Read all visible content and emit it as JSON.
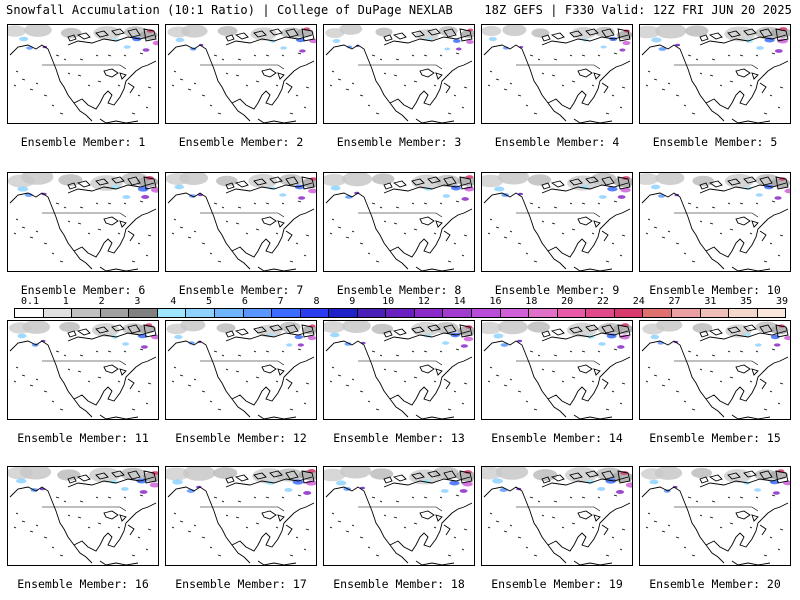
{
  "header": {
    "left": "Snowfall Accumulation (10:1 Ratio) | College of DuPage NEXLAB",
    "right": "18Z GEFS | F330 Valid: 12Z FRI JUN 20 2025"
  },
  "members": [
    {
      "label": "Ensemble Member: 1",
      "snow_intensity": 0.55
    },
    {
      "label": "Ensemble Member: 2",
      "snow_intensity": 0.5
    },
    {
      "label": "Ensemble Member: 3",
      "snow_intensity": 0.35
    },
    {
      "label": "Ensemble Member: 4",
      "snow_intensity": 0.4
    },
    {
      "label": "Ensemble Member: 5",
      "snow_intensity": 0.7
    },
    {
      "label": "Ensemble Member: 6",
      "snow_intensity": 0.75
    },
    {
      "label": "Ensemble Member: 7",
      "snow_intensity": 0.6
    },
    {
      "label": "Ensemble Member: 8",
      "snow_intensity": 0.65
    },
    {
      "label": "Ensemble Member: 9",
      "snow_intensity": 0.7
    },
    {
      "label": "Ensemble Member: 10",
      "snow_intensity": 0.6
    },
    {
      "label": "Ensemble Member: 11",
      "snow_intensity": 0.55
    },
    {
      "label": "Ensemble Member: 12",
      "snow_intensity": 0.45
    },
    {
      "label": "Ensemble Member: 13",
      "snow_intensity": 0.6
    },
    {
      "label": "Ensemble Member: 14",
      "snow_intensity": 0.65
    },
    {
      "label": "Ensemble Member: 15",
      "snow_intensity": 0.5
    },
    {
      "label": "Ensemble Member: 16",
      "snow_intensity": 0.7
    },
    {
      "label": "Ensemble Member: 17",
      "snow_intensity": 0.75
    },
    {
      "label": "Ensemble Member: 18",
      "snow_intensity": 0.7
    },
    {
      "label": "Ensemble Member: 19",
      "snow_intensity": 0.75
    },
    {
      "label": "Ensemble Member: 20",
      "snow_intensity": 0.55
    }
  ],
  "colorbar": {
    "labels": [
      "0.1",
      "1",
      "2",
      "3",
      "4",
      "5",
      "6",
      "7",
      "8",
      "9",
      "10",
      "12",
      "14",
      "16",
      "18",
      "20",
      "22",
      "24",
      "27",
      "31",
      "35",
      "39"
    ],
    "colors": [
      "#ffffff",
      "#e0e0e0",
      "#c0c0c0",
      "#a0a0a0",
      "#808080",
      "#9ee6ff",
      "#8fd2ff",
      "#6fb6ff",
      "#5a96ff",
      "#3c6cff",
      "#2a3ef0",
      "#2020c8",
      "#4a1fb8",
      "#6a20c0",
      "#8a2ac8",
      "#a23cd0",
      "#b94cd8",
      "#d060d8",
      "#e070c8",
      "#e85aa8",
      "#e04a8a",
      "#d83a6e",
      "#e07070",
      "#eaa0a0",
      "#f0c0b8",
      "#f5d8cc",
      "#fae8dc"
    ]
  }
}
